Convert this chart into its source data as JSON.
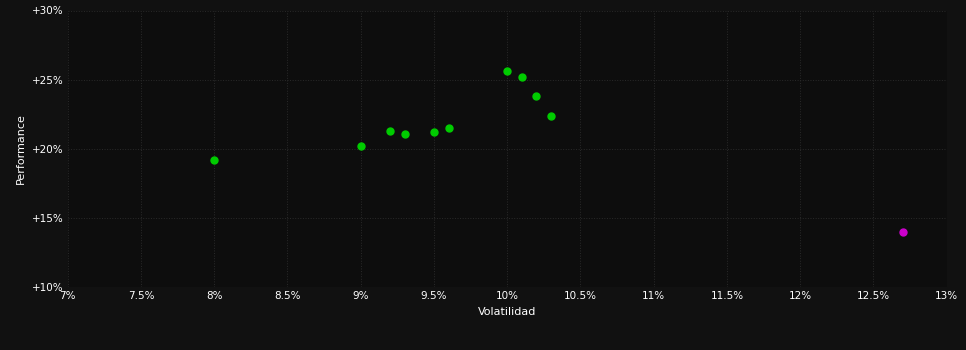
{
  "background_color": "#111111",
  "plot_bg_color": "#0d0d0d",
  "grid_color": "#2a2a2a",
  "text_color": "#ffffff",
  "xlabel": "Volatilidad",
  "ylabel": "Performance",
  "xlim": [
    0.07,
    0.13
  ],
  "ylim": [
    0.1,
    0.3
  ],
  "xticks": [
    0.07,
    0.075,
    0.08,
    0.085,
    0.09,
    0.095,
    0.1,
    0.105,
    0.11,
    0.115,
    0.12,
    0.125,
    0.13
  ],
  "yticks": [
    0.1,
    0.15,
    0.2,
    0.25,
    0.3
  ],
  "green_points": [
    [
      0.08,
      0.192
    ],
    [
      0.09,
      0.202
    ],
    [
      0.092,
      0.213
    ],
    [
      0.093,
      0.211
    ],
    [
      0.095,
      0.212
    ],
    [
      0.096,
      0.215
    ],
    [
      0.1,
      0.256
    ],
    [
      0.101,
      0.252
    ],
    [
      0.102,
      0.238
    ],
    [
      0.103,
      0.224
    ]
  ],
  "magenta_points": [
    [
      0.127,
      0.14
    ]
  ],
  "green_color": "#00cc00",
  "magenta_color": "#cc00cc",
  "marker_size": 25,
  "figsize": [
    9.66,
    3.5
  ],
  "dpi": 100
}
